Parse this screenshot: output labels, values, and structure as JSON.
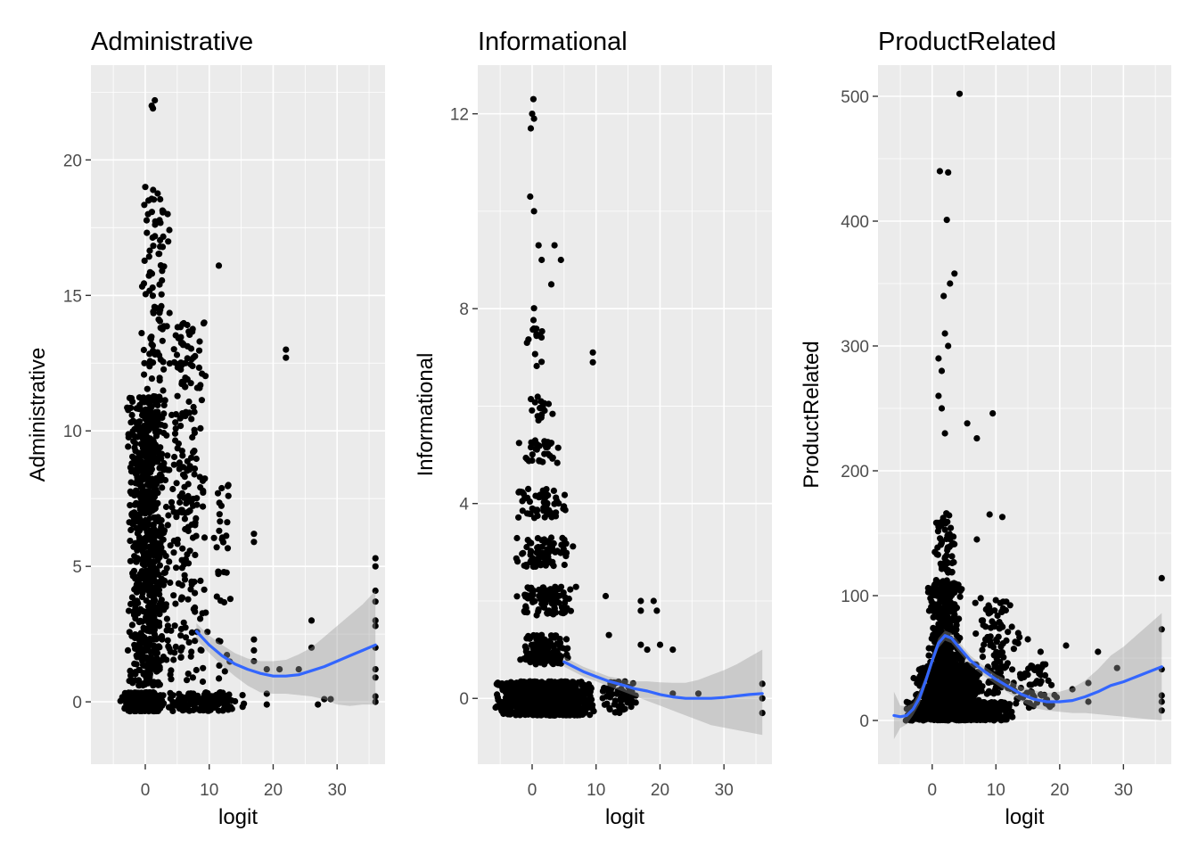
{
  "colors": {
    "panel_background": "#ebebeb",
    "grid": "#ffffff",
    "points": "#000000",
    "smooth_line": "#3366ff",
    "confidence_band": "#999999"
  },
  "chart_data": [
    {
      "type": "scatter",
      "title": "Administrative",
      "xlabel": "logit",
      "ylabel": "Administrative",
      "xlim": [
        -8.5,
        37.5
      ],
      "ylim": [
        -2.3,
        23.5
      ],
      "xticks": [
        0,
        10,
        20,
        30
      ],
      "yticks": [
        0,
        5,
        10,
        15,
        20
      ],
      "grid": true,
      "legend": "none",
      "smooth": {
        "method": "loess",
        "x": [
          8,
          10,
          12,
          14,
          16,
          18,
          20,
          22,
          24,
          26,
          28,
          30,
          32,
          34,
          36
        ],
        "y": [
          2.6,
          2.1,
          1.7,
          1.4,
          1.2,
          1.05,
          0.95,
          0.95,
          1.0,
          1.15,
          1.3,
          1.5,
          1.7,
          1.9,
          2.1
        ],
        "band_lower": [
          2.3,
          1.8,
          1.35,
          0.95,
          0.6,
          0.35,
          0.3,
          0.3,
          0.25,
          0.2,
          0.1,
          -0.1,
          -0.15,
          -0.1,
          -0.1
        ],
        "band_upper": [
          2.9,
          2.45,
          2.1,
          1.8,
          1.6,
          1.5,
          1.5,
          1.55,
          1.75,
          2.0,
          2.4,
          2.8,
          3.2,
          3.6,
          4.1
        ]
      },
      "point_groups": [
        {
          "x_range": [
            -4,
            3
          ],
          "y_range": [
            -0.35,
            0.35
          ],
          "count": 450
        },
        {
          "x_range": [
            -3,
            4
          ],
          "y_range": [
            0.6,
            11.3
          ],
          "count": 800
        },
        {
          "x_range": [
            -1,
            4
          ],
          "y_range": [
            11,
            19
          ],
          "count": 90
        },
        {
          "x_range": [
            3,
            10
          ],
          "y_range": [
            0.7,
            14
          ],
          "count": 220
        },
        {
          "x_range": [
            3,
            16
          ],
          "y_range": [
            -0.35,
            0.35
          ],
          "count": 160
        },
        {
          "x_range": [
            10,
            14
          ],
          "y_range": [
            0.7,
            8
          ],
          "count": 30
        }
      ],
      "points": [
        {
          "x": 1.0,
          "y": 22.0
        },
        {
          "x": 1.5,
          "y": 22.2
        },
        {
          "x": 1.2,
          "y": 21.9
        },
        {
          "x": 0.0,
          "y": 19.0
        },
        {
          "x": 0.5,
          "y": 18.5
        },
        {
          "x": 3.5,
          "y": 18.0
        },
        {
          "x": 11.5,
          "y": 16.1
        },
        {
          "x": 22.0,
          "y": 13.0
        },
        {
          "x": 22.0,
          "y": 12.7
        },
        {
          "x": 8.5,
          "y": 13.3
        },
        {
          "x": 13.0,
          "y": 8.0
        },
        {
          "x": 13.0,
          "y": 7.6
        },
        {
          "x": 17.0,
          "y": 6.2
        },
        {
          "x": 17.0,
          "y": 5.9
        },
        {
          "x": 12.0,
          "y": 6.0
        },
        {
          "x": 17.0,
          "y": 2.3
        },
        {
          "x": 17.0,
          "y": 1.9
        },
        {
          "x": 17.0,
          "y": 1.5
        },
        {
          "x": 19.0,
          "y": 1.2
        },
        {
          "x": 19.0,
          "y": 0.3
        },
        {
          "x": 19.0,
          "y": -0.1
        },
        {
          "x": 21.0,
          "y": 1.2
        },
        {
          "x": 24.0,
          "y": 1.2
        },
        {
          "x": 26.0,
          "y": 3.0
        },
        {
          "x": 26.0,
          "y": 2.0
        },
        {
          "x": 28.0,
          "y": 0.1
        },
        {
          "x": 29.0,
          "y": 0.1
        },
        {
          "x": 27.0,
          "y": -0.1
        },
        {
          "x": 36.0,
          "y": 5.3
        },
        {
          "x": 36.0,
          "y": 5.0
        },
        {
          "x": 36.0,
          "y": 4.1
        },
        {
          "x": 36.0,
          "y": 3.7
        },
        {
          "x": 36.0,
          "y": 3.0
        },
        {
          "x": 36.0,
          "y": 2.8
        },
        {
          "x": 36.0,
          "y": 2.0
        },
        {
          "x": 36.0,
          "y": 1.2
        },
        {
          "x": 36.0,
          "y": 0.9
        },
        {
          "x": 36.0,
          "y": 0.2
        },
        {
          "x": 36.0,
          "y": 0.0
        }
      ]
    },
    {
      "type": "scatter",
      "title": "Informational",
      "xlabel": "logit",
      "ylabel": "Informational",
      "xlim": [
        -8.5,
        37.5
      ],
      "ylim": [
        -1.35,
        13.0
      ],
      "xticks": [
        0,
        10,
        20,
        30
      ],
      "yticks": [
        0,
        4,
        8,
        12
      ],
      "grid": true,
      "legend": "none",
      "smooth": {
        "method": "loess",
        "x": [
          5,
          8,
          10,
          12,
          14,
          16,
          18,
          20,
          22,
          24,
          26,
          28,
          30,
          32,
          34,
          36
        ],
        "y": [
          0.75,
          0.55,
          0.45,
          0.35,
          0.28,
          0.2,
          0.15,
          0.08,
          0.03,
          0.0,
          0.0,
          0.0,
          0.02,
          0.05,
          0.08,
          0.1
        ],
        "band_lower": [
          0.65,
          0.45,
          0.35,
          0.25,
          0.15,
          0.05,
          -0.05,
          -0.15,
          -0.25,
          -0.35,
          -0.45,
          -0.55,
          -0.6,
          -0.65,
          -0.7,
          -0.75
        ],
        "band_upper": [
          0.85,
          0.65,
          0.55,
          0.45,
          0.4,
          0.35,
          0.35,
          0.33,
          0.32,
          0.32,
          0.38,
          0.48,
          0.58,
          0.7,
          0.85,
          1.0
        ]
      },
      "point_groups": [
        {
          "x_range": [
            -6,
            10
          ],
          "y_range": [
            -0.35,
            0.35
          ],
          "count": 1000
        },
        {
          "x_range": [
            10,
            17
          ],
          "y_range": [
            -0.35,
            0.35
          ],
          "count": 60
        },
        {
          "x_range": [
            -3,
            7
          ],
          "y_range": [
            0.7,
            1.3
          ],
          "count": 120
        },
        {
          "x_range": [
            -3,
            7
          ],
          "y_range": [
            1.7,
            2.3
          ],
          "count": 100
        },
        {
          "x_range": [
            -3,
            7
          ],
          "y_range": [
            2.7,
            3.3
          ],
          "count": 80
        },
        {
          "x_range": [
            -3,
            6
          ],
          "y_range": [
            3.7,
            4.3
          ],
          "count": 60
        },
        {
          "x_range": [
            -3,
            5
          ],
          "y_range": [
            4.8,
            5.3
          ],
          "count": 35
        },
        {
          "x_range": [
            -1,
            4
          ],
          "y_range": [
            5.7,
            6.2
          ],
          "count": 22
        },
        {
          "x_range": [
            -1,
            3
          ],
          "y_range": [
            6.8,
            8.1
          ],
          "count": 15
        }
      ],
      "points": [
        {
          "x": 0.2,
          "y": 12.3
        },
        {
          "x": 0.0,
          "y": 12.0
        },
        {
          "x": 0.3,
          "y": 11.9
        },
        {
          "x": -0.2,
          "y": 11.7
        },
        {
          "x": -0.3,
          "y": 10.3
        },
        {
          "x": 0.3,
          "y": 10.0
        },
        {
          "x": 1.0,
          "y": 9.3
        },
        {
          "x": 1.5,
          "y": 9.0
        },
        {
          "x": 3.5,
          "y": 9.3
        },
        {
          "x": 4.5,
          "y": 9.0
        },
        {
          "x": 3.0,
          "y": 8.5
        },
        {
          "x": 9.5,
          "y": 7.1
        },
        {
          "x": 9.5,
          "y": 6.9
        },
        {
          "x": 11.5,
          "y": 2.1
        },
        {
          "x": 12.0,
          "y": 1.3
        },
        {
          "x": 17.0,
          "y": 2.0
        },
        {
          "x": 17.0,
          "y": 1.8
        },
        {
          "x": 19.0,
          "y": 2.0
        },
        {
          "x": 19.5,
          "y": 1.8
        },
        {
          "x": 17.0,
          "y": 1.1
        },
        {
          "x": 18.0,
          "y": 1.0
        },
        {
          "x": 20.0,
          "y": 1.1
        },
        {
          "x": 22.0,
          "y": 1.0
        },
        {
          "x": 26.0,
          "y": 0.1
        },
        {
          "x": 22.0,
          "y": 0.1
        },
        {
          "x": 36.0,
          "y": 0.3
        },
        {
          "x": 36.0,
          "y": 0.0
        },
        {
          "x": 36.0,
          "y": -0.3
        }
      ]
    },
    {
      "type": "scatter",
      "title": "ProductRelated",
      "xlabel": "logit",
      "ylabel": "ProductRelated",
      "xlim": [
        -8.5,
        37.5
      ],
      "ylim": [
        -35,
        525
      ],
      "xticks": [
        0,
        10,
        20,
        30
      ],
      "yticks": [
        0,
        100,
        200,
        300,
        400,
        500
      ],
      "grid": true,
      "legend": "none",
      "smooth": {
        "method": "loess",
        "x": [
          -6,
          -5,
          -4,
          -3,
          -2,
          -1,
          0,
          1,
          2,
          3,
          4,
          5,
          6,
          8,
          10,
          12,
          14,
          16,
          18,
          20,
          22,
          24,
          26,
          28,
          30,
          32,
          34,
          36
        ],
        "y": [
          4,
          3,
          4,
          9,
          18,
          32,
          48,
          62,
          68,
          66,
          60,
          54,
          48,
          40,
          33,
          27,
          21,
          17,
          15,
          15,
          16,
          19,
          23,
          28,
          31,
          35,
          39,
          43
        ],
        "band_lower": [
          -15,
          -6,
          -3,
          4,
          13,
          28,
          44,
          58,
          64,
          62,
          56,
          50,
          44,
          36,
          29,
          22,
          15,
          10,
          8,
          7,
          6,
          6,
          5,
          4,
          3,
          2,
          1,
          0
        ],
        "band_upper": [
          23,
          12,
          11,
          14,
          23,
          36,
          52,
          66,
          72,
          70,
          64,
          58,
          52,
          44,
          37,
          32,
          27,
          24,
          22,
          23,
          26,
          32,
          41,
          52,
          59,
          68,
          77,
          86
        ]
      },
      "point_groups": [
        {
          "x_range": [
            -5,
            13
          ],
          "y_range": [
            0,
            15
          ],
          "count": 800
        },
        {
          "x_range": [
            -3,
            8
          ],
          "y_range": [
            10,
            45
          ],
          "count": 600
        },
        {
          "x_range": [
            -1,
            5
          ],
          "y_range": [
            40,
            110
          ],
          "count": 300
        },
        {
          "x_range": [
            0,
            4
          ],
          "y_range": [
            100,
            170
          ],
          "count": 80
        },
        {
          "x_range": [
            6,
            14
          ],
          "y_range": [
            20,
            100
          ],
          "count": 120
        },
        {
          "x_range": [
            12,
            20
          ],
          "y_range": [
            10,
            45
          ],
          "count": 60
        }
      ],
      "points": [
        {
          "x": 4.3,
          "y": 502
        },
        {
          "x": 1.2,
          "y": 440
        },
        {
          "x": 2.5,
          "y": 439
        },
        {
          "x": 2.3,
          "y": 401
        },
        {
          "x": 3.5,
          "y": 358
        },
        {
          "x": 2.8,
          "y": 350
        },
        {
          "x": 1.8,
          "y": 340
        },
        {
          "x": 2.0,
          "y": 310
        },
        {
          "x": 2.5,
          "y": 300
        },
        {
          "x": 1.0,
          "y": 290
        },
        {
          "x": 1.5,
          "y": 280
        },
        {
          "x": 1.0,
          "y": 260
        },
        {
          "x": 1.5,
          "y": 250
        },
        {
          "x": 2.0,
          "y": 230
        },
        {
          "x": 9.5,
          "y": 246
        },
        {
          "x": 7.0,
          "y": 226
        },
        {
          "x": 5.5,
          "y": 238
        },
        {
          "x": 11.0,
          "y": 163
        },
        {
          "x": 9.0,
          "y": 165
        },
        {
          "x": 7.0,
          "y": 145
        },
        {
          "x": 12.5,
          "y": 75
        },
        {
          "x": 13.5,
          "y": 70
        },
        {
          "x": 15.0,
          "y": 65
        },
        {
          "x": 17.0,
          "y": 55
        },
        {
          "x": 21.0,
          "y": 60
        },
        {
          "x": 26.0,
          "y": 55
        },
        {
          "x": 22.0,
          "y": 25
        },
        {
          "x": 24.5,
          "y": 30
        },
        {
          "x": 24.5,
          "y": 15
        },
        {
          "x": 29.0,
          "y": 42
        },
        {
          "x": 36.0,
          "y": 114
        },
        {
          "x": 36.0,
          "y": 73
        },
        {
          "x": 36.0,
          "y": 41
        },
        {
          "x": 36.0,
          "y": 20
        },
        {
          "x": 36.0,
          "y": 15
        },
        {
          "x": 36.0,
          "y": 8
        }
      ]
    }
  ]
}
